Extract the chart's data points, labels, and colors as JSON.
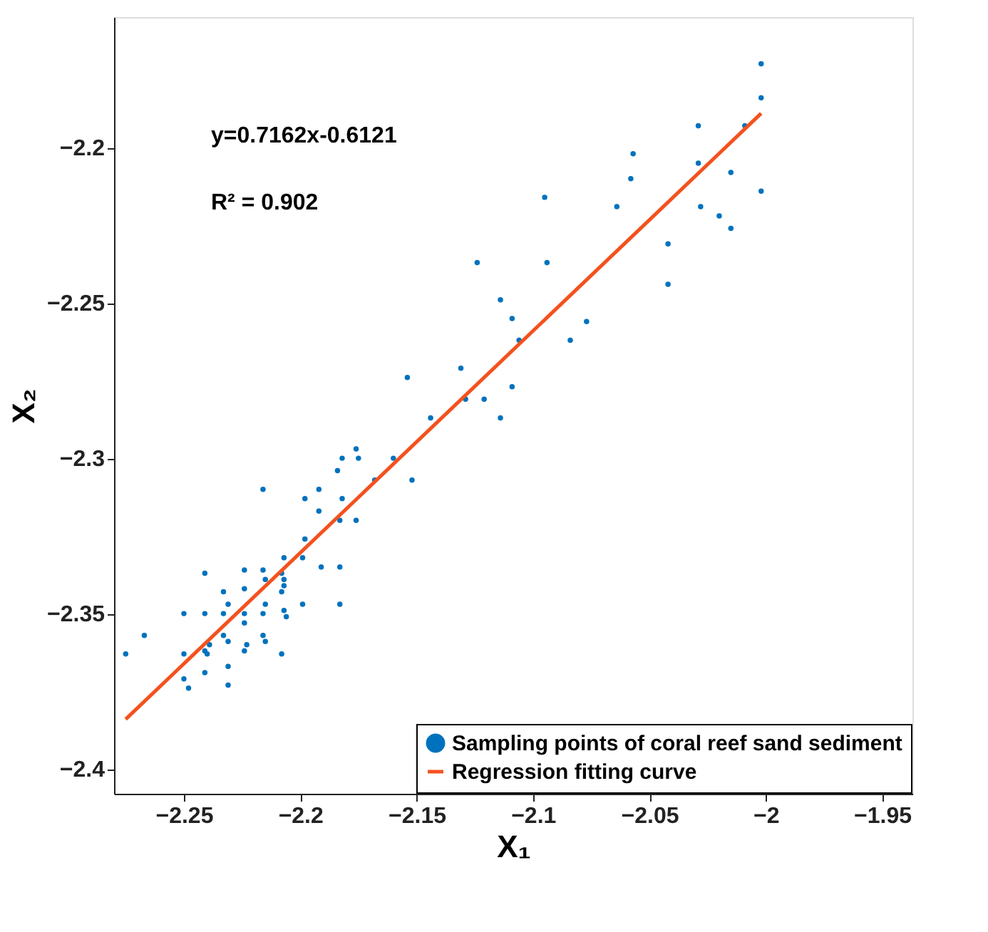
{
  "chart_data": {
    "type": "scatter",
    "xlabel": "X₁",
    "ylabel": "X₂",
    "xlim": [
      -2.28,
      -1.937
    ],
    "ylim": [
      -2.408,
      -2.158
    ],
    "xticks": [
      -2.25,
      -2.2,
      -2.15,
      -2.1,
      -2.05,
      -2,
      -1.95
    ],
    "yticks": [
      -2.4,
      -2.35,
      -2.3,
      -2.25,
      -2.2
    ],
    "grid": false,
    "legend": "bottom right",
    "annotations": [
      "y=0.7162x-0.6121",
      "R² = 0.902"
    ],
    "series": [
      {
        "name": "Sampling points of coral reef sand sediment",
        "color": "#0072bd",
        "marker": "circle",
        "x": [
          -2.002,
          -2.002,
          -2.029,
          -2.009,
          -2.057,
          -2.029,
          -2.058,
          -2.015,
          -2.002,
          -2.095,
          -2.064,
          -2.028,
          -2.02,
          -2.015,
          -2.042,
          -2.124,
          -2.094,
          -2.042,
          -2.114,
          -2.109,
          -2.077,
          -2.106,
          -2.084,
          -2.154,
          -2.131,
          -2.129,
          -2.121,
          -2.109,
          -2.144,
          -2.114,
          -2.176,
          -2.182,
          -2.175,
          -2.16,
          -2.184,
          -2.168,
          -2.152,
          -2.216,
          -2.192,
          -2.198,
          -2.182,
          -2.192,
          -2.183,
          -2.176,
          -2.198,
          -2.207,
          -2.199,
          -2.191,
          -2.183,
          -2.241,
          -2.224,
          -2.216,
          -2.208,
          -2.215,
          -2.207,
          -2.207,
          -2.224,
          -2.233,
          -2.208,
          -2.231,
          -2.215,
          -2.199,
          -2.183,
          -2.25,
          -2.241,
          -2.233,
          -2.224,
          -2.216,
          -2.207,
          -2.206,
          -2.224,
          -2.267,
          -2.233,
          -2.216,
          -2.231,
          -2.215,
          -2.239,
          -2.223,
          -2.241,
          -2.224,
          -2.275,
          -2.25,
          -2.24,
          -2.208,
          -2.231,
          -2.241,
          -2.25,
          -2.231,
          -2.248
        ],
        "values": [
          -2.173,
          -2.184,
          -2.193,
          -2.193,
          -2.202,
          -2.205,
          -2.21,
          -2.208,
          -2.214,
          -2.216,
          -2.219,
          -2.219,
          -2.222,
          -2.226,
          -2.231,
          -2.237,
          -2.237,
          -2.244,
          -2.249,
          -2.255,
          -2.256,
          -2.262,
          -2.262,
          -2.274,
          -2.271,
          -2.281,
          -2.281,
          -2.277,
          -2.287,
          -2.287,
          -2.297,
          -2.3,
          -2.3,
          -2.3,
          -2.304,
          -2.307,
          -2.307,
          -2.31,
          -2.31,
          -2.313,
          -2.313,
          -2.317,
          -2.32,
          -2.32,
          -2.326,
          -2.332,
          -2.332,
          -2.335,
          -2.335,
          -2.337,
          -2.336,
          -2.336,
          -2.337,
          -2.339,
          -2.339,
          -2.341,
          -2.342,
          -2.343,
          -2.343,
          -2.347,
          -2.347,
          -2.347,
          -2.347,
          -2.35,
          -2.35,
          -2.35,
          -2.35,
          -2.35,
          -2.349,
          -2.351,
          -2.353,
          -2.357,
          -2.357,
          -2.357,
          -2.359,
          -2.359,
          -2.36,
          -2.36,
          -2.362,
          -2.362,
          -2.363,
          -2.363,
          -2.363,
          -2.363,
          -2.367,
          -2.369,
          -2.371,
          -2.373,
          -2.374
        ]
      },
      {
        "name": "Regression fitting curve",
        "color": "#f4511e",
        "type": "line",
        "line_style": "solid",
        "x": [
          -2.275,
          -2.002
        ],
        "values": [
          -2.384,
          -2.189
        ]
      }
    ]
  }
}
